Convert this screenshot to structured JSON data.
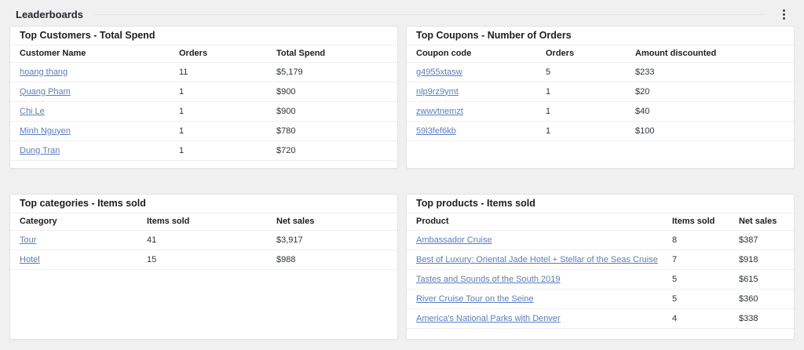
{
  "page": {
    "title": "Leaderboards"
  },
  "cards": [
    {
      "title": "Top Customers - Total Spend",
      "headers": [
        "Customer Name",
        "Orders",
        "Total Spend"
      ],
      "rows": [
        [
          "hoang thang",
          "11",
          "$5,179"
        ],
        [
          "Quang Pham",
          "1",
          "$900"
        ],
        [
          "Chi Le",
          "1",
          "$900"
        ],
        [
          "Minh Nguyen",
          "1",
          "$780"
        ],
        [
          "Dung Tran",
          "1",
          "$720"
        ]
      ]
    },
    {
      "title": "Top Coupons - Number of Orders",
      "headers": [
        "Coupon code",
        "Orders",
        "Amount discounted"
      ],
      "rows": [
        [
          "g4955xtasw",
          "5",
          "$233"
        ],
        [
          "nlp9rz9ymt",
          "1",
          "$20"
        ],
        [
          "zwwvtnemzt",
          "1",
          "$40"
        ],
        [
          "59l3fef6kb",
          "1",
          "$100"
        ]
      ]
    },
    {
      "title": "Top categories - Items sold",
      "headers": [
        "Category",
        "Items sold",
        "Net sales"
      ],
      "rows": [
        [
          "Tour",
          "41",
          "$3,917"
        ],
        [
          "Hotel",
          "15",
          "$988"
        ]
      ]
    },
    {
      "title": "Top products - Items sold",
      "headers": [
        "Product",
        "Items sold",
        "Net sales"
      ],
      "rows": [
        [
          "Ambassador Cruise",
          "8",
          "$387"
        ],
        [
          "Best of Luxury: Oriental Jade Hotel + Stellar of the Seas Cruise",
          "7",
          "$918"
        ],
        [
          "Tastes and Sounds of the South 2019",
          "5",
          "$615"
        ],
        [
          "River Cruise Tour on the Seine",
          "5",
          "$360"
        ],
        [
          "America's National Parks with Denver",
          "4",
          "$338"
        ]
      ]
    }
  ],
  "colors": {
    "page_background": "#f0f0f1",
    "card_background": "#ffffff",
    "link": "#5a7dc3",
    "heading_text": "#1e1e1e"
  }
}
